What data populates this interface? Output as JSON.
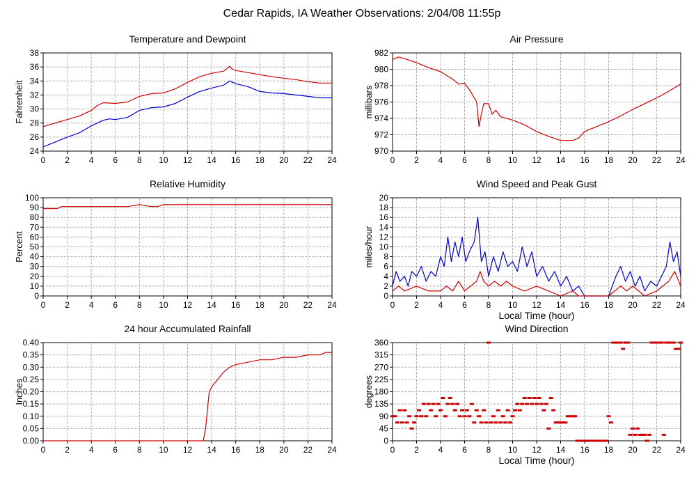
{
  "page": {
    "title": "Cedar Rapids, IA Weather Observations: 2/04/08 11:55p"
  },
  "colors": {
    "red": "#cc0000",
    "blue": "#0000cc",
    "grid": "#9a9a9a"
  },
  "chart_data": [
    {
      "id": "temp",
      "type": "line",
      "title": "Temperature and Dewpoint",
      "xlabel": "",
      "ylabel": "Fahrenheit",
      "xlim": [
        0,
        24
      ],
      "ylim": [
        24,
        38
      ],
      "xticks": [
        0,
        2,
        4,
        6,
        8,
        10,
        12,
        14,
        16,
        18,
        20,
        22,
        24
      ],
      "yticks": [
        24,
        26,
        28,
        30,
        32,
        34,
        36,
        38
      ],
      "grid": true,
      "series": [
        {
          "color": "#cc0000",
          "x": [
            0,
            1,
            2,
            3,
            4,
            4.5,
            5,
            6,
            7,
            8,
            9,
            10,
            11,
            12,
            13,
            14,
            15,
            15.5,
            15.7,
            16,
            17,
            18,
            19,
            20,
            21,
            22,
            23,
            24
          ],
          "y": [
            27.5,
            28.0,
            28.5,
            29.0,
            29.8,
            30.5,
            30.9,
            30.8,
            31.0,
            31.8,
            32.2,
            32.3,
            32.9,
            33.8,
            34.6,
            35.1,
            35.4,
            36.1,
            35.7,
            35.5,
            35.2,
            34.9,
            34.6,
            34.4,
            34.2,
            33.9,
            33.7,
            33.7
          ]
        },
        {
          "color": "#0000cc",
          "x": [
            0,
            1,
            2,
            3,
            4,
            5,
            5.5,
            6,
            7,
            8,
            9,
            10,
            11,
            12,
            13,
            14,
            15,
            15.5,
            16,
            17,
            18,
            19,
            20,
            21,
            22,
            23,
            24
          ],
          "y": [
            24.6,
            25.3,
            26.0,
            26.6,
            27.6,
            28.4,
            28.6,
            28.5,
            28.8,
            29.8,
            30.2,
            30.3,
            30.8,
            31.7,
            32.5,
            33.0,
            33.4,
            34.0,
            33.6,
            33.2,
            32.5,
            32.3,
            32.2,
            32.0,
            31.8,
            31.6,
            31.6
          ]
        }
      ]
    },
    {
      "id": "pressure",
      "type": "line",
      "title": "Air Pressure",
      "xlabel": "",
      "ylabel": "millibars",
      "xlim": [
        0,
        24
      ],
      "ylim": [
        970,
        982
      ],
      "xticks": [
        0,
        2,
        4,
        6,
        8,
        10,
        12,
        14,
        16,
        18,
        20,
        22,
        24
      ],
      "yticks": [
        970,
        972,
        974,
        976,
        978,
        980,
        982
      ],
      "grid": true,
      "series": [
        {
          "color": "#cc0000",
          "x": [
            0,
            0.5,
            1,
            2,
            3,
            4,
            5,
            5.5,
            6,
            6.5,
            7,
            7.2,
            7.4,
            7.6,
            8,
            8.3,
            8.6,
            9,
            10,
            11,
            12,
            13,
            14,
            15,
            15.5,
            16,
            17,
            18,
            19,
            20,
            21,
            22,
            23,
            24
          ],
          "y": [
            981.2,
            981.5,
            981.3,
            980.8,
            980.2,
            979.7,
            978.8,
            978.2,
            978.3,
            977.3,
            976.0,
            973.0,
            974.5,
            975.8,
            975.8,
            974.5,
            975.0,
            974.2,
            973.8,
            973.2,
            972.4,
            971.8,
            971.3,
            971.3,
            971.6,
            972.4,
            973.0,
            973.6,
            974.3,
            975.1,
            975.8,
            976.5,
            977.3,
            978.2
          ]
        }
      ]
    },
    {
      "id": "humidity",
      "type": "line",
      "title": "Relative Humidity",
      "xlabel": "",
      "ylabel": "Percent",
      "xlim": [
        0,
        24
      ],
      "ylim": [
        0,
        100
      ],
      "xticks": [
        0,
        2,
        4,
        6,
        8,
        10,
        12,
        14,
        16,
        18,
        20,
        22,
        24
      ],
      "yticks": [
        0,
        10,
        20,
        30,
        40,
        50,
        60,
        70,
        80,
        90,
        100
      ],
      "grid": true,
      "series": [
        {
          "color": "#cc0000",
          "x": [
            0,
            1.2,
            1.5,
            4,
            7,
            7.5,
            8,
            9,
            9.5,
            10,
            12,
            14,
            16,
            18,
            24
          ],
          "y": [
            89,
            89,
            91,
            91,
            91,
            92,
            93,
            91,
            91,
            93,
            93,
            93,
            93,
            93,
            93
          ]
        }
      ]
    },
    {
      "id": "wind",
      "type": "line",
      "title": "Wind Speed and Peak Gust",
      "xlabel": "Local Time (hour)",
      "ylabel": "miles/hour",
      "xlim": [
        0,
        24
      ],
      "ylim": [
        0,
        20
      ],
      "xticks": [
        0,
        2,
        4,
        6,
        8,
        10,
        12,
        14,
        16,
        18,
        20,
        22,
        24
      ],
      "yticks": [
        0,
        2,
        4,
        6,
        8,
        10,
        12,
        14,
        16,
        18,
        20
      ],
      "grid": true,
      "series": [
        {
          "color": "#0000cc",
          "x": [
            0,
            0.3,
            0.6,
            1,
            1.3,
            1.6,
            2,
            2.4,
            2.8,
            3.2,
            3.6,
            4,
            4.3,
            4.6,
            4.9,
            5.2,
            5.5,
            5.8,
            6.1,
            6.4,
            6.8,
            7.1,
            7.4,
            7.7,
            8,
            8.4,
            8.8,
            9.2,
            9.6,
            10,
            10.4,
            10.8,
            11.2,
            11.6,
            12,
            12.5,
            13,
            13.5,
            14,
            14.5,
            15,
            15.5,
            16,
            16.5,
            17,
            17.5,
            18,
            18.3,
            18.6,
            19,
            19.4,
            19.8,
            20.2,
            20.6,
            21,
            21.5,
            22,
            22.4,
            22.8,
            23.1,
            23.4,
            23.7,
            24
          ],
          "y": [
            2,
            5,
            3,
            4,
            2,
            5,
            4,
            6,
            3,
            5,
            4,
            8,
            6,
            12,
            7,
            11,
            8,
            12,
            7,
            9,
            11,
            16,
            7,
            9,
            4,
            8,
            5,
            9,
            6,
            7,
            5,
            10,
            6,
            9,
            4,
            6,
            3,
            5,
            2,
            4,
            1,
            2,
            0,
            0,
            0,
            0,
            0,
            2,
            4,
            6,
            3,
            5,
            2,
            4,
            1,
            3,
            2,
            4,
            6,
            11,
            7,
            9,
            4
          ]
        },
        {
          "color": "#cc0000",
          "x": [
            0,
            0.5,
            1,
            2,
            3,
            4,
            4.5,
            5,
            5.5,
            6,
            6.5,
            7,
            7.3,
            7.6,
            8,
            8.5,
            9,
            9.5,
            10,
            11,
            12,
            13,
            14,
            15,
            15.5,
            16,
            17,
            18,
            18.5,
            19,
            19.5,
            20,
            20.5,
            21,
            22,
            22.5,
            23,
            23.5,
            24
          ],
          "y": [
            1,
            2,
            1,
            2,
            1,
            1,
            2,
            1,
            3,
            1,
            2,
            3,
            5,
            3,
            2,
            3,
            2,
            3,
            2,
            1,
            2,
            1,
            0,
            1,
            0,
            0,
            0,
            0,
            1,
            2,
            1,
            2,
            1,
            0,
            1,
            2,
            3,
            5,
            2
          ]
        }
      ]
    },
    {
      "id": "rain",
      "type": "line",
      "title": "24 hour Accumulated Rainfall",
      "xlabel": "",
      "ylabel": "Inches",
      "xlim": [
        0,
        24
      ],
      "ylim": [
        0,
        0.4
      ],
      "xticks": [
        0,
        2,
        4,
        6,
        8,
        10,
        12,
        14,
        16,
        18,
        20,
        22,
        24
      ],
      "yticks": [
        "0.00",
        "0.05",
        "0.10",
        "0.15",
        "0.20",
        "0.25",
        "0.30",
        "0.35",
        "0.40"
      ],
      "grid": true,
      "series": [
        {
          "color": "#cc0000",
          "x": [
            0,
            13.3,
            13.5,
            13.8,
            14.0,
            14.5,
            15.0,
            15.5,
            16.0,
            17.0,
            18.0,
            19.0,
            20.0,
            21.0,
            22.0,
            23.0,
            23.5,
            24
          ],
          "y": [
            0.0,
            0.0,
            0.05,
            0.2,
            0.22,
            0.25,
            0.28,
            0.3,
            0.31,
            0.32,
            0.33,
            0.33,
            0.34,
            0.34,
            0.35,
            0.35,
            0.36,
            0.36
          ]
        }
      ]
    },
    {
      "id": "direction",
      "type": "scatter",
      "title": "Wind Direction",
      "xlabel": "Local Time (hour)",
      "ylabel": "degrees",
      "xlim": [
        0,
        24
      ],
      "ylim": [
        0,
        360
      ],
      "xticks": [
        0,
        2,
        4,
        6,
        8,
        10,
        12,
        14,
        16,
        18,
        20,
        22,
        24
      ],
      "yticks": [
        0,
        45,
        90,
        135,
        180,
        225,
        270,
        315,
        360
      ],
      "grid": true,
      "series": [
        {
          "color": "#cc0000",
          "x": [
            0,
            0.2,
            0.4,
            0.6,
            0.8,
            1.0,
            1.2,
            1.4,
            1.6,
            1.8,
            2.0,
            2.2,
            2.4,
            2.6,
            2.8,
            3.0,
            3.2,
            3.4,
            3.6,
            3.8,
            4.0,
            4.2,
            4.4,
            4.6,
            4.8,
            5.0,
            5.2,
            5.4,
            5.6,
            5.8,
            6.0,
            6.2,
            6.4,
            6.6,
            6.8,
            7.0,
            7.2,
            7.4,
            7.6,
            7.8,
            8.0,
            8.2,
            8.4,
            8.6,
            8.8,
            9.0,
            9.2,
            9.4,
            9.6,
            9.8,
            10.0,
            10.2,
            10.4,
            10.6,
            10.8,
            11.0,
            11.2,
            11.4,
            11.6,
            11.8,
            12.0,
            12.2,
            12.4,
            12.6,
            12.8,
            13.0,
            13.2,
            13.4,
            13.6,
            13.8,
            14.0,
            14.2,
            14.4,
            14.6,
            14.8,
            15.0,
            15.2,
            15.4,
            15.6,
            15.8,
            16.0,
            16.3,
            16.6,
            16.9,
            17.2,
            17.5,
            17.8,
            18.0,
            18.2,
            18.4,
            18.6,
            18.8,
            19.0,
            19.2,
            19.4,
            19.6,
            19.8,
            20.0,
            20.2,
            20.4,
            20.6,
            20.8,
            21.0,
            21.2,
            21.4,
            21.6,
            21.8,
            22.0,
            22.2,
            22.4,
            22.6,
            22.8,
            23.0,
            23.2,
            23.4,
            23.6,
            23.8,
            24.0
          ],
          "y": [
            90,
            90,
            67,
            112,
            67,
            112,
            67,
            90,
            45,
            67,
            90,
            112,
            90,
            135,
            90,
            135,
            112,
            135,
            90,
            135,
            112,
            157,
            90,
            135,
            157,
            135,
            112,
            135,
            90,
            112,
            90,
            112,
            90,
            135,
            67,
            112,
            90,
            67,
            112,
            67,
            360,
            67,
            90,
            67,
            112,
            67,
            90,
            67,
            112,
            67,
            90,
            112,
            135,
            112,
            135,
            157,
            135,
            157,
            135,
            157,
            135,
            157,
            135,
            112,
            135,
            45,
            157,
            112,
            67,
            67,
            67,
            67,
            67,
            90,
            90,
            90,
            90,
            0,
            0,
            0,
            0,
            0,
            0,
            0,
            0,
            0,
            0,
            90,
            67,
            360,
            360,
            360,
            360,
            337,
            360,
            360,
            22,
            45,
            22,
            45,
            22,
            22,
            22,
            0,
            22,
            360,
            360,
            360,
            360,
            360,
            22,
            360,
            360,
            360,
            360,
            337,
            337,
            360
          ]
        }
      ]
    }
  ]
}
